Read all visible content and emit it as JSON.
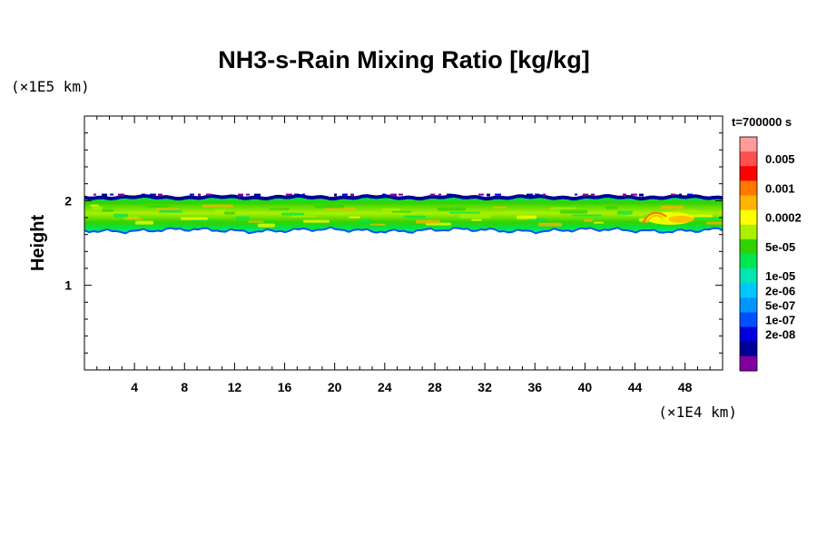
{
  "chart_data": {
    "type": "heatmap",
    "title": "NH3-s-Rain Mixing Ratio [kg/kg]",
    "xlabel": "",
    "ylabel": "Height",
    "x_unit": "(×1E4 km)",
    "y_unit": "(×1E5 km)",
    "xlim": [
      0,
      51
    ],
    "ylim": [
      0,
      3
    ],
    "x_ticks": [
      "4",
      "8",
      "12",
      "16",
      "20",
      "24",
      "28",
      "32",
      "36",
      "40",
      "44",
      "48"
    ],
    "y_ticks": [
      "1",
      "2"
    ],
    "time_label": "t=700000 s",
    "colorbar": {
      "levels": [
        "0.005",
        "0.001",
        "0.0002",
        "5e-05",
        "1e-05",
        "2e-06",
        "5e-07",
        "1e-07",
        "2e-08"
      ],
      "colors": [
        "#ff9b9b",
        "#ff5050",
        "#ff0000",
        "#ff7800",
        "#ffb400",
        "#ffff00",
        "#aaf000",
        "#32d200",
        "#00e650",
        "#00e6b4",
        "#00c8ff",
        "#0096ff",
        "#0050ff",
        "#0000dc",
        "#000096",
        "#8200a0"
      ]
    },
    "band": {
      "base_height": 1.66,
      "top_height": 2.04,
      "dominant_range": "1e-05 to 5e-05",
      "core_range": "5e-05 to 0.0002",
      "hotspot_x": 45.5,
      "hotspot_height": 1.78
    }
  }
}
